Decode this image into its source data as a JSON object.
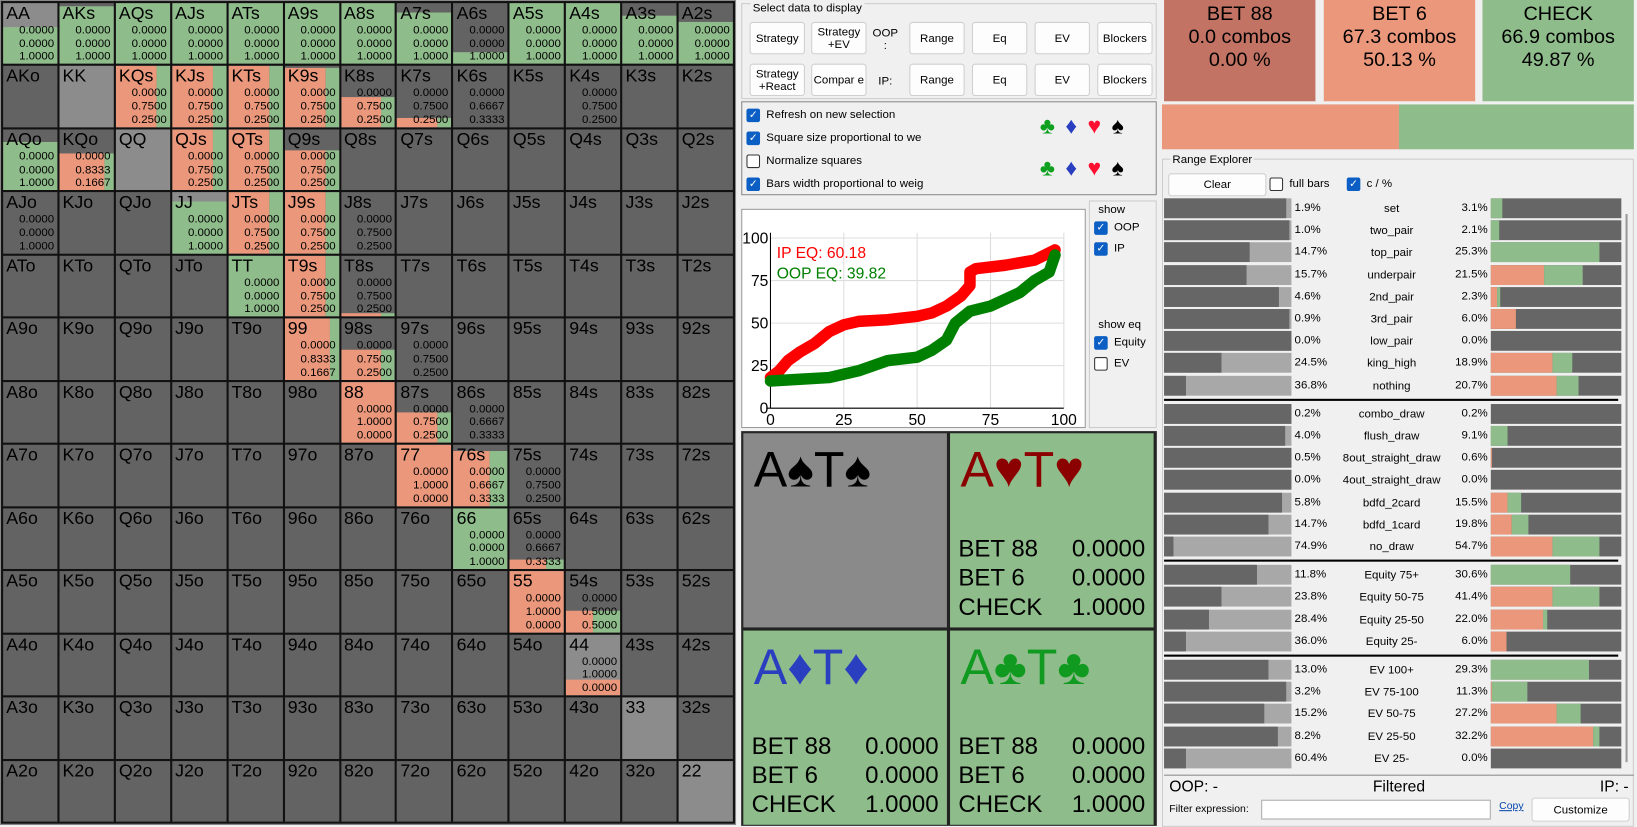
{
  "colors": {
    "bet88": "#c27363",
    "bet6": "#ea977b",
    "check": "#8fbc8b",
    "empty": "#636363",
    "pair": "#8c8c8c"
  },
  "grid": {
    "rows": [
      [
        "AA",
        "AKs",
        "AQs",
        "AJs",
        "ATs",
        "A9s",
        "A8s",
        "A7s",
        "A6s",
        "A5s",
        "A4s",
        "A3s",
        "A2s"
      ],
      [
        "AKo",
        "KK",
        "KQs",
        "KJs",
        "KTs",
        "K9s",
        "K8s",
        "K7s",
        "K6s",
        "K5s",
        "K4s",
        "K3s",
        "K2s"
      ],
      [
        "AQo",
        "KQo",
        "QQ",
        "QJs",
        "QTs",
        "Q9s",
        "Q8s",
        "Q7s",
        "Q6s",
        "Q5s",
        "Q4s",
        "Q3s",
        "Q2s"
      ],
      [
        "AJo",
        "KJo",
        "QJo",
        "JJ",
        "JTs",
        "J9s",
        "J8s",
        "J7s",
        "J6s",
        "J5s",
        "J4s",
        "J3s",
        "J2s"
      ],
      [
        "ATo",
        "KTo",
        "QTo",
        "JTo",
        "TT",
        "T9s",
        "T8s",
        "T7s",
        "T6s",
        "T5s",
        "T4s",
        "T3s",
        "T2s"
      ],
      [
        "A9o",
        "K9o",
        "Q9o",
        "J9o",
        "T9o",
        "99",
        "98s",
        "97s",
        "96s",
        "95s",
        "94s",
        "93s",
        "92s"
      ],
      [
        "A8o",
        "K8o",
        "Q8o",
        "J8o",
        "T8o",
        "98o",
        "88",
        "87s",
        "86s",
        "85s",
        "84s",
        "83s",
        "82s"
      ],
      [
        "A7o",
        "K7o",
        "Q7o",
        "J7o",
        "T7o",
        "97o",
        "87o",
        "77",
        "76s",
        "75s",
        "74s",
        "73s",
        "72s"
      ],
      [
        "A6o",
        "K6o",
        "Q6o",
        "J6o",
        "T6o",
        "96o",
        "86o",
        "76o",
        "66",
        "65s",
        "64s",
        "63s",
        "62s"
      ],
      [
        "A5o",
        "K5o",
        "Q5o",
        "J5o",
        "T5o",
        "95o",
        "85o",
        "75o",
        "65o",
        "55",
        "54s",
        "53s",
        "52s"
      ],
      [
        "A4o",
        "K4o",
        "Q4o",
        "J4o",
        "T4o",
        "94o",
        "84o",
        "74o",
        "64o",
        "54o",
        "44",
        "43s",
        "42s"
      ],
      [
        "A3o",
        "K3o",
        "Q3o",
        "J3o",
        "T3o",
        "93o",
        "83o",
        "73o",
        "63o",
        "53o",
        "43o",
        "33",
        "32s"
      ],
      [
        "A2o",
        "K2o",
        "Q2o",
        "J2o",
        "T2o",
        "92o",
        "82o",
        "72o",
        "62o",
        "52o",
        "42o",
        "32o",
        "22"
      ]
    ],
    "cells": {
      "AA": {
        "w": 0.6,
        "s": [
          "0.0000",
          "0.0000",
          "1.0000"
        ]
      },
      "AKs": {
        "w": 0.95,
        "s": [
          "0.0000",
          "0.0000",
          "1.0000"
        ]
      },
      "AQs": {
        "w": 1,
        "s": [
          "0.0000",
          "0.0000",
          "1.0000"
        ]
      },
      "AJs": {
        "w": 1,
        "s": [
          "0.0000",
          "0.0000",
          "1.0000"
        ]
      },
      "ATs": {
        "w": 1,
        "s": [
          "0.0000",
          "0.0000",
          "1.0000"
        ]
      },
      "A9s": {
        "w": 1,
        "s": [
          "0.0000",
          "0.0000",
          "1.0000"
        ]
      },
      "A8s": {
        "w": 1,
        "s": [
          "0.0000",
          "0.0000",
          "1.0000"
        ]
      },
      "A7s": {
        "w": 0.85,
        "s": [
          "0.0000",
          "0.0000",
          "1.0000"
        ]
      },
      "A6s": {
        "w": 0.2,
        "s": [
          "0.0000",
          "0.0000",
          "1.0000"
        ]
      },
      "A5s": {
        "w": 1,
        "s": [
          "0.0000",
          "0.0000",
          "1.0000"
        ]
      },
      "A4s": {
        "w": 1,
        "s": [
          "0.0000",
          "0.0000",
          "1.0000"
        ]
      },
      "A3s": {
        "w": 0.8,
        "s": [
          "0.0000",
          "0.0000",
          "1.0000"
        ]
      },
      "A2s": {
        "w": 0.7,
        "s": [
          "0.0000",
          "0.0000",
          "1.0000"
        ]
      },
      "KQs": {
        "w": 1,
        "s": [
          "0.0000",
          "0.7500",
          "0.2500"
        ]
      },
      "KJs": {
        "w": 1,
        "s": [
          "0.0000",
          "0.7500",
          "0.2500"
        ]
      },
      "KTs": {
        "w": 1,
        "s": [
          "0.0000",
          "0.7500",
          "0.2500"
        ]
      },
      "K9s": {
        "w": 0.97,
        "s": [
          "0.0000",
          "0.7500",
          "0.2500"
        ]
      },
      "K8s": {
        "w": 0.5,
        "s": [
          "0.0000",
          "0.7500",
          "0.2500"
        ]
      },
      "K7s": {
        "w": 0.15,
        "s": [
          "0.0000",
          "0.7500",
          "0.2500"
        ]
      },
      "K6s": {
        "w": 0,
        "s": [
          "0.0000",
          "0.6667",
          "0.3333"
        ]
      },
      "K4s": {
        "w": 0,
        "s": [
          "0.0000",
          "0.7500",
          "0.2500"
        ]
      },
      "AQo": {
        "w": 0.8,
        "s": [
          "0.0000",
          "0.0000",
          "1.0000"
        ]
      },
      "KQo": {
        "w": 0.6,
        "s": [
          "0.0000",
          "0.8333",
          "0.1667"
        ]
      },
      "QJs": {
        "w": 1,
        "s": [
          "0.0000",
          "0.7500",
          "0.2500"
        ]
      },
      "QTs": {
        "w": 1,
        "s": [
          "0.0000",
          "0.7500",
          "0.2500"
        ]
      },
      "Q9s": {
        "w": 0.65,
        "s": [
          "0.0000",
          "0.7500",
          "0.2500"
        ]
      },
      "AJo": {
        "w": 0,
        "s": [
          "0.0000",
          "0.0000",
          "1.0000"
        ]
      },
      "JJ": {
        "w": 0.85,
        "s": [
          "0.0000",
          "0.0000",
          "1.0000"
        ]
      },
      "JTs": {
        "w": 1,
        "s": [
          "0.0000",
          "0.7500",
          "0.2500"
        ]
      },
      "J9s": {
        "w": 1,
        "s": [
          "0.0000",
          "0.7500",
          "0.2500"
        ]
      },
      "J8s": {
        "w": 0,
        "s": [
          "0.0000",
          "0.7500",
          "0.2500"
        ]
      },
      "TT": {
        "w": 1,
        "s": [
          "0.0000",
          "0.0000",
          "1.0000"
        ]
      },
      "T9s": {
        "w": 1,
        "s": [
          "0.0000",
          "0.7500",
          "0.2500"
        ]
      },
      "T8s": {
        "w": 0.05,
        "s": [
          "0.0000",
          "0.7500",
          "0.2500"
        ]
      },
      "99": {
        "w": 1,
        "s": [
          "0.0000",
          "0.8333",
          "0.1667"
        ]
      },
      "98s": {
        "w": 0.5,
        "s": [
          "0.0000",
          "0.7500",
          "0.2500"
        ]
      },
      "97s": {
        "w": 0,
        "s": [
          "0.0000",
          "0.7500",
          "0.2500"
        ]
      },
      "88": {
        "w": 1,
        "s": [
          "0.0000",
          "1.0000",
          "0.0000"
        ]
      },
      "87s": {
        "w": 0.5,
        "s": [
          "0.0000",
          "0.7500",
          "0.2500"
        ]
      },
      "86s": {
        "w": 0,
        "s": [
          "0.0000",
          "0.6667",
          "0.3333"
        ]
      },
      "77": {
        "w": 1,
        "s": [
          "0.0000",
          "1.0000",
          "0.0000"
        ]
      },
      "76s": {
        "w": 0.9,
        "s": [
          "0.0000",
          "0.6667",
          "0.3333"
        ]
      },
      "75s": {
        "w": 0,
        "s": [
          "0.0000",
          "0.7500",
          "0.2500"
        ]
      },
      "66": {
        "w": 1,
        "s": [
          "0.0000",
          "0.0000",
          "1.0000"
        ]
      },
      "65s": {
        "w": 0.15,
        "s": [
          "0.0000",
          "0.6667",
          "0.3333"
        ]
      },
      "55": {
        "w": 1,
        "s": [
          "0.0000",
          "1.0000",
          "0.0000"
        ]
      },
      "54s": {
        "w": 0.35,
        "s": [
          "0.0000",
          "0.5000",
          "0.5000"
        ]
      },
      "44": {
        "w": 0.25,
        "s": [
          "0.0000",
          "1.0000",
          "0.0000"
        ]
      }
    }
  },
  "controls": {
    "group_title": "Select data to display",
    "strategy": "Strategy",
    "strategy_ev": "Strategy +EV",
    "strategy_react": "Strategy +React",
    "compare": "Compar e",
    "oop_label": "OOP :",
    "ip_label": "IP:",
    "range": "Range",
    "eq": "Eq",
    "ev": "EV",
    "blockers": "Blockers"
  },
  "options": [
    {
      "label": "Refresh on new selection",
      "checked": true
    },
    {
      "label": "Square size proportional to we",
      "checked": true
    },
    {
      "label": "Normalize squares",
      "checked": false
    },
    {
      "label": "Bars width proportional to weig",
      "checked": true
    }
  ],
  "suits": [
    "♣",
    "♦",
    "♥",
    "♠"
  ],
  "show": {
    "title": "show",
    "oop": "OOP",
    "ip": "IP",
    "eq_title": "show eq",
    "equity": "Equity",
    "ev": "EV"
  },
  "chart_data": {
    "type": "line",
    "xlim": [
      0,
      100
    ],
    "ylim": [
      0,
      100
    ],
    "xticks": [
      "0",
      "25",
      "50",
      "75",
      "100"
    ],
    "yticks": [
      "0",
      "25",
      "50",
      "75",
      "100"
    ],
    "grid": true,
    "annotations": [
      "IP EQ: 60.18",
      "OOP EQ: 39.82"
    ],
    "series": [
      {
        "color": "#ff0000",
        "x": [
          0,
          3,
          6,
          10,
          15,
          20,
          25,
          30,
          40,
          50,
          55,
          60,
          65,
          68,
          68,
          70,
          80,
          90,
          97
        ],
        "y": [
          18,
          22,
          28,
          33,
          38,
          45,
          49,
          51,
          52,
          54,
          56,
          60,
          66,
          72,
          80,
          82,
          84,
          87,
          93
        ]
      },
      {
        "color": "#008000",
        "x": [
          0,
          10,
          20,
          30,
          40,
          50,
          55,
          60,
          63,
          68,
          75,
          85,
          90,
          95,
          97
        ],
        "y": [
          16,
          17,
          18,
          22,
          28,
          30,
          34,
          40,
          50,
          57,
          60,
          68,
          75,
          80,
          90
        ]
      }
    ]
  },
  "strategies": [
    {
      "name": "BET 88",
      "combos": "0.0 combos",
      "pct": "0.00 %"
    },
    {
      "name": "BET 6",
      "combos": "67.3 combos",
      "pct": "50.13 %"
    },
    {
      "name": "CHECK",
      "combos": "66.9 combos",
      "pct": "49.87 %"
    }
  ],
  "strategy_bar": {
    "bet88": 0.0,
    "bet6": 0.5013,
    "check": 0.4987
  },
  "cards": [
    {
      "hand": "A♠T♠",
      "color": "#000000",
      "bg": "#8a8a8a",
      "rows": []
    },
    {
      "hand": "A♥T♥",
      "color": "#8b0000",
      "bg": "#8fbc8b",
      "rows": [
        [
          "BET 88",
          "0.0000"
        ],
        [
          "BET 6",
          "0.0000"
        ],
        [
          "CHECK",
          "1.0000"
        ]
      ]
    },
    {
      "hand": "A♦T♦",
      "color": "#2a3fc0",
      "bg": "#8fbc8b",
      "rows": [
        [
          "BET 88",
          "0.0000"
        ],
        [
          "BET 6",
          "0.0000"
        ],
        [
          "CHECK",
          "1.0000"
        ]
      ]
    },
    {
      "hand": "A♣T♣",
      "color": "#109a20",
      "bg": "#8fbc8b",
      "rows": [
        [
          "BET 88",
          "0.0000"
        ],
        [
          "BET 6",
          "0.0000"
        ],
        [
          "CHECK",
          "1.0000"
        ]
      ]
    }
  ],
  "explorer": {
    "title": "Range Explorer",
    "clear": "Clear",
    "full_bars": "full bars",
    "c_pct": "c / %",
    "groups": [
      [
        [
          "set",
          "1.9%",
          "3.1%",
          0.04,
          0,
          0.09
        ],
        [
          "two_pair",
          "1.0%",
          "2.1%",
          0.02,
          0,
          0.06
        ],
        [
          "top_pair",
          "14.7%",
          "25.3%",
          0.33,
          0,
          0.83
        ],
        [
          "underpair",
          "15.7%",
          "21.5%",
          0.35,
          0.41,
          0.29
        ],
        [
          "2nd_pair",
          "4.6%",
          "2.3%",
          0.1,
          0.05,
          0.02
        ],
        [
          "3rd_pair",
          "0.9%",
          "6.0%",
          0.02,
          0.19,
          0
        ],
        [
          "low_pair",
          "0.0%",
          "0.0%",
          0,
          0,
          0
        ],
        [
          "king_high",
          "24.5%",
          "18.9%",
          0.55,
          0.47,
          0.15
        ],
        [
          "nothing",
          "36.8%",
          "20.7%",
          0.83,
          0.5,
          0.17
        ]
      ],
      [
        [
          "combo_draw",
          "0.2%",
          "0.2%",
          0,
          0,
          0
        ],
        [
          "flush_draw",
          "4.0%",
          "9.1%",
          0.05,
          0,
          0.13
        ],
        [
          "8out_straight_draw",
          "0.5%",
          "0.6%",
          0,
          0.01,
          0
        ],
        [
          "4out_straight_draw",
          "0.0%",
          "0.0%",
          0,
          0,
          0
        ],
        [
          "bdfd_2card",
          "5.8%",
          "15.5%",
          0.07,
          0.13,
          0.1
        ],
        [
          "bdfd_1card",
          "14.7%",
          "19.8%",
          0.18,
          0.16,
          0.13
        ],
        [
          "no_draw",
          "74.9%",
          "54.7%",
          0.93,
          0.47,
          0.36
        ]
      ],
      [
        [
          "Equity 75+",
          "11.8%",
          "30.6%",
          0.27,
          0,
          0.61
        ],
        [
          "Equity 50-75",
          "23.8%",
          "41.4%",
          0.55,
          0.47,
          0.36
        ],
        [
          "Equity 25-50",
          "28.4%",
          "22.0%",
          0.65,
          0.4,
          0.03
        ],
        [
          "Equity 25-",
          "36.0%",
          "6.0%",
          0.83,
          0.12,
          0
        ]
      ],
      [
        [
          "EV 100+",
          "13.0%",
          "29.3%",
          0.18,
          0,
          0.75
        ],
        [
          "EV 75-100",
          "3.2%",
          "11.3%",
          0.04,
          0.01,
          0.27
        ],
        [
          "EV 50-75",
          "15.2%",
          "27.2%",
          0.21,
          0.5,
          0.19
        ],
        [
          "EV 25-50",
          "8.2%",
          "32.2%",
          0.11,
          0.78,
          0.05
        ],
        [
          "EV 25-",
          "60.4%",
          "0.0%",
          0.83,
          0,
          0
        ]
      ]
    ],
    "oop": "OOP: -",
    "filtered": "Filtered",
    "ip": "IP: -",
    "filter_label": "Filter expression:",
    "filter_value": "",
    "copy": "Copy",
    "customize": "Customize"
  }
}
